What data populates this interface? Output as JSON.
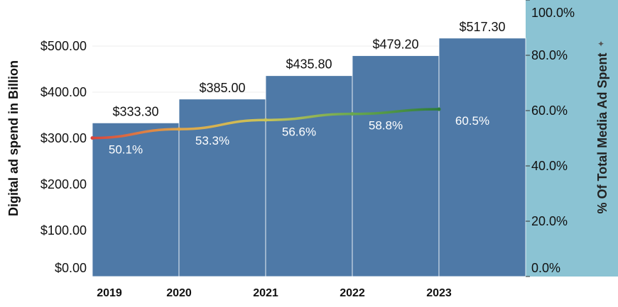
{
  "chart_data": {
    "type": "bar",
    "categories": [
      "2019",
      "2020",
      "2021",
      "2022",
      "2023"
    ],
    "values": [
      333.3,
      385.0,
      435.8,
      479.2,
      517.3
    ],
    "value_labels": [
      "$333.30",
      "$385.00",
      "$435.80",
      "$479.20",
      "$517.30"
    ],
    "ylabel": "Digital ad spend in Billion",
    "ylim": [
      0,
      560
    ],
    "yticks": [
      0,
      100,
      200,
      300,
      400,
      500
    ],
    "ytick_labels": [
      "$0.00",
      "$100.00",
      "$200.00",
      "$300.00",
      "$400.00",
      "$500.00"
    ],
    "y2label": "% Of Total Media Ad Spent",
    "y2lim": [
      0,
      100
    ],
    "y2ticks": [
      0,
      20,
      40,
      60,
      80,
      100
    ],
    "y2tick_labels": [
      "0.0%",
      "20.0%",
      "40.0%",
      "60.0%",
      "80.0%",
      "100.0%"
    ],
    "line_series": {
      "values": [
        50.1,
        53.3,
        56.6,
        58.8,
        60.5
      ],
      "labels": [
        "50.1%",
        "53.3%",
        "56.6%",
        "58.8%",
        "60.5%"
      ],
      "gradient": [
        "#d9453c",
        "#e0a64a",
        "#c9c45a",
        "#6aa84f",
        "#2e7d3a"
      ]
    },
    "grid": true,
    "colors": {
      "bar": "#4e79a7",
      "right_axis_bg": "#8bc3d3",
      "text": "#111111"
    }
  }
}
